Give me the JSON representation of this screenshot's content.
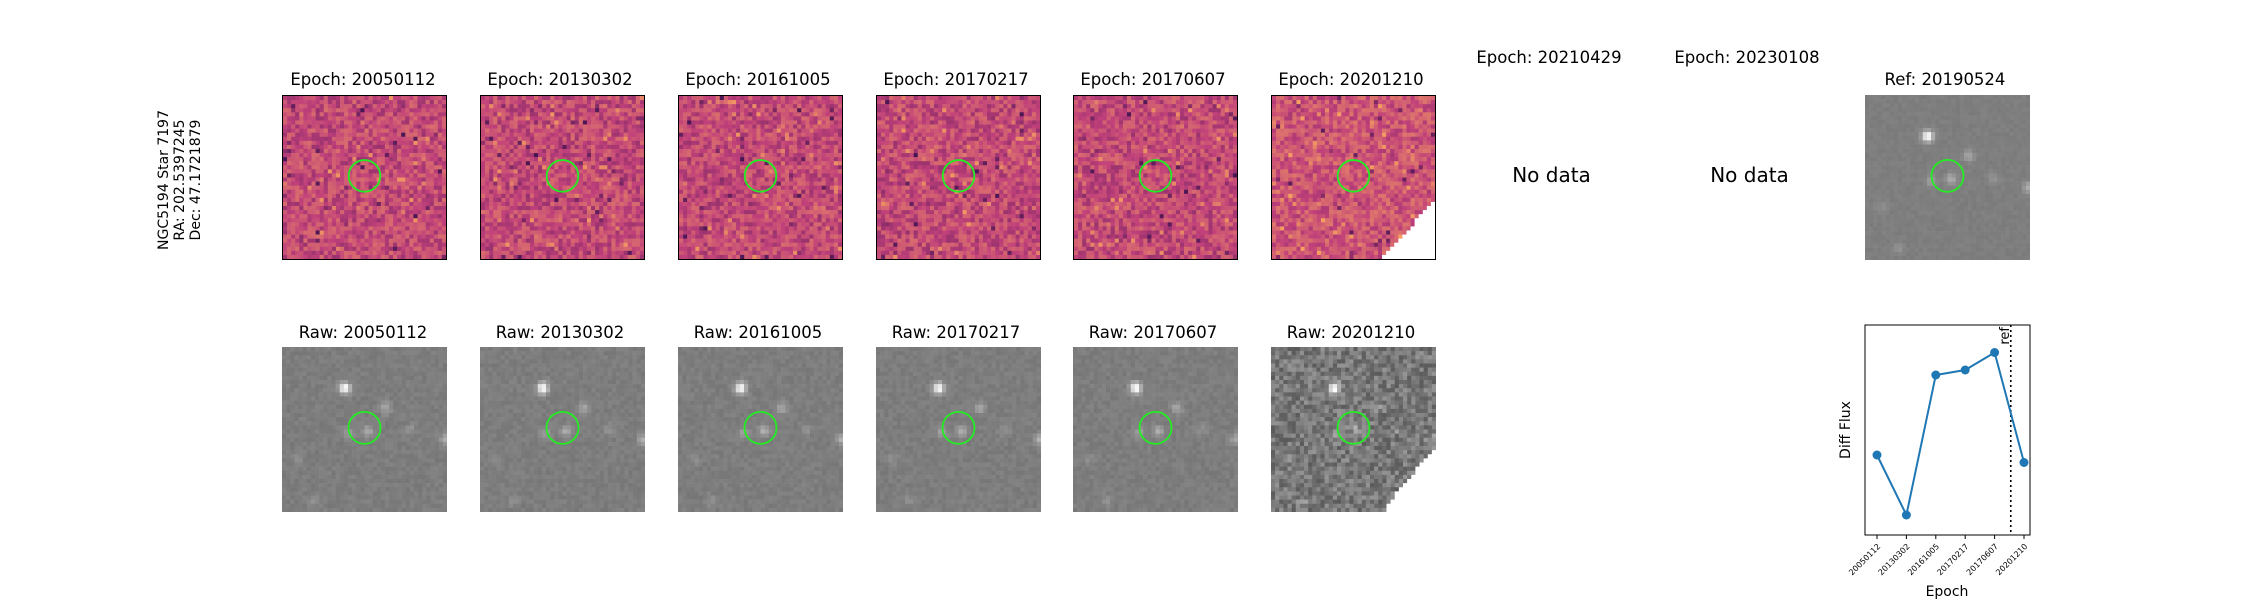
{
  "side_label": {
    "line1": "NGC5194 Star 7197",
    "line2": "RA: 202.5397245",
    "line3": "Dec: 47.1721879"
  },
  "diff_titles": [
    "Epoch: 20050112",
    "Epoch: 20130302",
    "Epoch: 20161005",
    "Epoch: 20170217",
    "Epoch: 20170607",
    "Epoch: 20201210",
    "Epoch: 20210429",
    "Epoch: 20230108"
  ],
  "ref_title": "Ref: 20190524",
  "raw_titles": [
    "Raw: 20050112",
    "Raw: 20130302",
    "Raw: 20161005",
    "Raw: 20170217",
    "Raw: 20170607",
    "Raw: 20201210"
  ],
  "no_data_text": "No data",
  "colors": {
    "ring": "#22ee22",
    "line": "#1f77b4",
    "diff_low": "#2a0a4a",
    "diff_mid": "#c0407a",
    "diff_high": "#f6a060",
    "raw_bg": "#808080"
  },
  "chart_data": {
    "type": "line",
    "x": [
      "20050112",
      "20130302",
      "20161005",
      "20170217",
      "20170607",
      "20201210"
    ],
    "series": [
      {
        "values": [
          0.4,
          -0.8,
          2.0,
          2.1,
          2.45,
          0.25
        ]
      }
    ],
    "xlabel": "Epoch",
    "ylabel": "Diff Flux",
    "ref_line": {
      "label": "ref",
      "position": "between 20170607 and 20201210"
    },
    "ylim": [
      -1.2,
      3.0
    ],
    "grid": false
  }
}
